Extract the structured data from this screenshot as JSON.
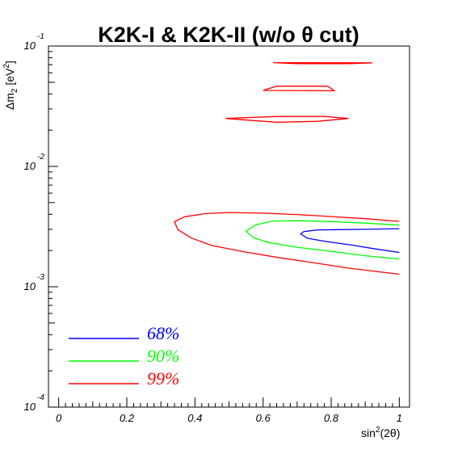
{
  "chart_data": {
    "type": "line",
    "title": "K2K-I & K2K-II (w/o θ cut)",
    "xlabel": "sin²(2θ)",
    "ylabel": "Δm² [eV²]",
    "ylabel_parts": {
      "base": "Δm",
      "sub": "2",
      "unit": " [eV",
      "sup": "2",
      "close": "]"
    },
    "xlabel_parts": {
      "base": "sin",
      "sup": "2",
      "rest": "(2θ)"
    },
    "xlim": [
      -0.03,
      1.03
    ],
    "ylim": [
      0.0001,
      0.1
    ],
    "y_scale": "log",
    "x_ticks": [
      "0",
      "0.2",
      "0.4",
      "0.6",
      "0.8",
      "1"
    ],
    "y_ticks": [
      {
        "value": 0.1,
        "base": "10",
        "exp": "-1"
      },
      {
        "value": 0.01,
        "base": "10",
        "exp": "-2"
      },
      {
        "value": 0.001,
        "base": "10",
        "exp": "-3"
      },
      {
        "value": 0.0001,
        "base": "10",
        "exp": "-4"
      }
    ],
    "legend_position": "bottom-left",
    "series": [
      {
        "name": "68%",
        "color": "#0000ff",
        "contours": [
          [
            [
              1.0,
              0.00304
            ],
            [
              0.9,
              0.003
            ],
            [
              0.82,
              0.00298
            ],
            [
              0.76,
              0.00297
            ],
            [
              0.72,
              0.00288
            ],
            [
              0.71,
              0.00275
            ],
            [
              0.73,
              0.00253
            ],
            [
              0.78,
              0.00239
            ],
            [
              0.86,
              0.00222
            ],
            [
              0.93,
              0.00206
            ],
            [
              1.0,
              0.00193
            ]
          ]
        ]
      },
      {
        "name": "90%",
        "color": "#00ff00",
        "contours": [
          [
            [
              1.0,
              0.00325
            ],
            [
              0.9,
              0.00338
            ],
            [
              0.8,
              0.00348
            ],
            [
              0.7,
              0.00354
            ],
            [
              0.63,
              0.00352
            ],
            [
              0.58,
              0.00328
            ],
            [
              0.55,
              0.0029
            ],
            [
              0.57,
              0.00258
            ],
            [
              0.61,
              0.00235
            ],
            [
              0.7,
              0.00213
            ],
            [
              0.8,
              0.00197
            ],
            [
              0.9,
              0.00181
            ],
            [
              1.0,
              0.0017
            ]
          ]
        ]
      },
      {
        "name": "99%",
        "color": "#ff0000",
        "contours": [
          [
            [
              1.0,
              0.00349
            ],
            [
              0.9,
              0.00368
            ],
            [
              0.8,
              0.00383
            ],
            [
              0.7,
              0.00398
            ],
            [
              0.6,
              0.00409
            ],
            [
              0.5,
              0.00414
            ],
            [
              0.43,
              0.00405
            ],
            [
              0.37,
              0.00382
            ],
            [
              0.34,
              0.00347
            ],
            [
              0.35,
              0.00298
            ],
            [
              0.39,
              0.00254
            ],
            [
              0.45,
              0.0022
            ],
            [
              0.55,
              0.00194
            ],
            [
              0.65,
              0.00174
            ],
            [
              0.75,
              0.00158
            ],
            [
              0.85,
              0.00143
            ],
            [
              1.0,
              0.00127
            ]
          ],
          [
            [
              0.63,
              0.0728
            ],
            [
              0.92,
              0.0725
            ],
            [
              0.85,
              0.0713
            ],
            [
              0.7,
              0.0713
            ],
            [
              0.63,
              0.0728
            ]
          ],
          [
            [
              0.6,
              0.0428
            ],
            [
              0.64,
              0.0464
            ],
            [
              0.79,
              0.0464
            ],
            [
              0.81,
              0.0425
            ],
            [
              0.6,
              0.0428
            ]
          ],
          [
            [
              0.49,
              0.025
            ],
            [
              0.64,
              0.026
            ],
            [
              0.78,
              0.026
            ],
            [
              0.85,
              0.025
            ],
            [
              0.76,
              0.0237
            ],
            [
              0.64,
              0.0233
            ],
            [
              0.49,
              0.025
            ]
          ]
        ]
      }
    ]
  }
}
